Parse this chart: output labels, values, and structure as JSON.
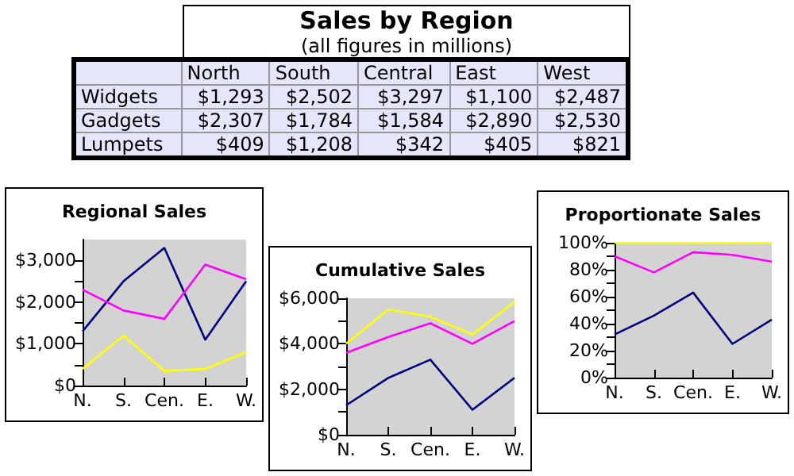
{
  "chart_data": [
    {
      "type": "other",
      "title": "Sales by Region",
      "subtitle": "(all figures in millions)",
      "categories": [
        "North",
        "South",
        "Central",
        "East",
        "West"
      ],
      "y_categories": [
        "Widgets",
        "Gadgets",
        "Lumpets"
      ],
      "cell_labels": [
        [
          "$1,293",
          "$2,502",
          "$3,297",
          "$1,100",
          "$2,487"
        ],
        [
          "$2,307",
          "$1,784",
          "$1,584",
          "$2,890",
          "$2,530"
        ],
        [
          "$409",
          "$1,208",
          "$342",
          "$405",
          "$821"
        ]
      ]
    },
    {
      "type": "line",
      "title": "Regional Sales",
      "categories": [
        "N.",
        "S.",
        "Cen.",
        "E.",
        "W."
      ],
      "marker": "none",
      "grid": false,
      "series": [
        {
          "color": "#000080",
          "values": [
            1300,
            2500,
            3300,
            1100,
            2500
          ]
        },
        {
          "color": "#ff00ff",
          "values": [
            2300,
            1800,
            1600,
            2900,
            2550
          ]
        },
        {
          "color": "#ffff00",
          "values": [
            400,
            1200,
            350,
            400,
            800
          ]
        }
      ],
      "ylim": [
        0,
        3500
      ],
      "yticks": [
        {
          "value": 0,
          "label": "$0"
        },
        {
          "value": 500,
          "label": null
        },
        {
          "value": 1000,
          "label": "$1,000"
        },
        {
          "value": 1500,
          "label": null
        },
        {
          "value": 2000,
          "label": "$2,000"
        },
        {
          "value": 2500,
          "label": null
        },
        {
          "value": 3000,
          "label": "$3,000"
        }
      ]
    },
    {
      "type": "line",
      "title": "Cumulative Sales",
      "categories": [
        "N.",
        "S.",
        "Cen.",
        "E.",
        "W."
      ],
      "marker": "none",
      "grid": false,
      "series": [
        {
          "color": "#000080",
          "values": [
            1300,
            2500,
            3300,
            1100,
            2500
          ]
        },
        {
          "color": "#ff00ff",
          "values": [
            3600,
            4300,
            4900,
            4000,
            5000
          ]
        },
        {
          "color": "#ffff00",
          "values": [
            4000,
            5500,
            5200,
            4400,
            5850
          ]
        }
      ],
      "ylim": [
        0,
        6000
      ],
      "yticks": [
        {
          "value": 0,
          "label": "$0"
        },
        {
          "value": 1000,
          "label": null
        },
        {
          "value": 2000,
          "label": "$2,000"
        },
        {
          "value": 3000,
          "label": null
        },
        {
          "value": 4000,
          "label": "$4,000"
        },
        {
          "value": 5000,
          "label": null
        },
        {
          "value": 6000,
          "label": "$6,000"
        }
      ]
    },
    {
      "type": "line",
      "title": "Proportionate Sales",
      "categories": [
        "N.",
        "S.",
        "Cen.",
        "E.",
        "W."
      ],
      "marker": "none",
      "grid": false,
      "series": [
        {
          "color": "#000080",
          "values": [
            32,
            46,
            63,
            25,
            43
          ]
        },
        {
          "color": "#ff00ff",
          "values": [
            90,
            78,
            93,
            91,
            86
          ]
        },
        {
          "color": "#ffff00",
          "values": [
            100,
            100,
            100,
            100,
            100
          ]
        }
      ],
      "ylim": [
        0,
        100
      ],
      "yticks": [
        {
          "value": 0,
          "label": "0%"
        },
        {
          "value": 10,
          "label": null
        },
        {
          "value": 20,
          "label": "20%"
        },
        {
          "value": 30,
          "label": null
        },
        {
          "value": 40,
          "label": "40%"
        },
        {
          "value": 50,
          "label": null
        },
        {
          "value": 60,
          "label": "60%"
        },
        {
          "value": 70,
          "label": null
        },
        {
          "value": 80,
          "label": "80%"
        },
        {
          "value": 90,
          "label": null
        },
        {
          "value": 100,
          "label": "100%"
        }
      ]
    }
  ]
}
